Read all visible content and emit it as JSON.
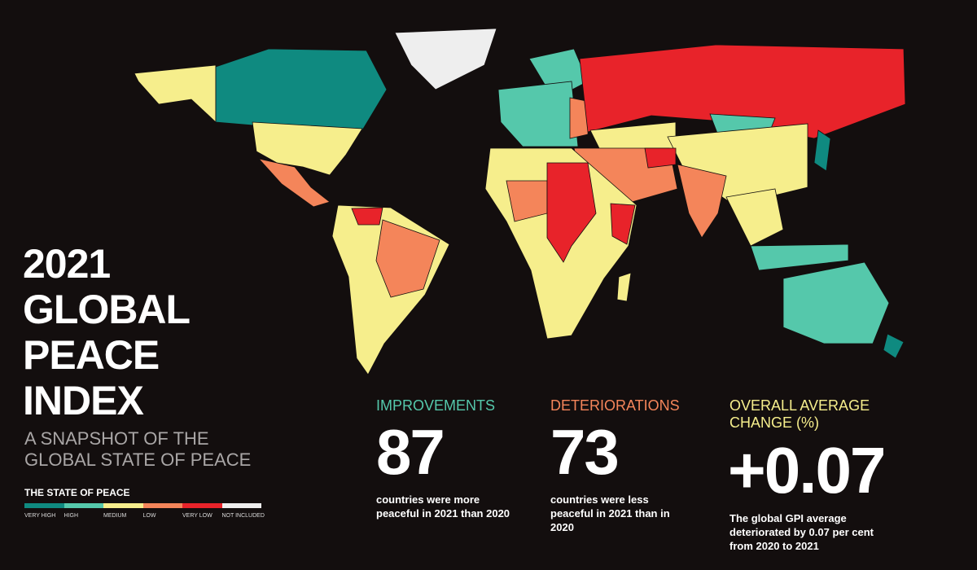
{
  "title_lines": [
    "2021",
    "GLOBAL",
    "PEACE",
    "INDEX"
  ],
  "subtitle_lines": [
    "A SNAPSHOT OF THE",
    "GLOBAL STATE OF PEACE"
  ],
  "background_color": "#130e0e",
  "legend": {
    "title": "THE STATE OF PEACE",
    "items": [
      {
        "key": "very_high",
        "label": "VERY HIGH",
        "color": "#0f8a80"
      },
      {
        "key": "high",
        "label": "HIGH",
        "color": "#55c8ab"
      },
      {
        "key": "medium",
        "label": "MEDIUM",
        "color": "#f6ee8c"
      },
      {
        "key": "low",
        "label": "LOW",
        "color": "#f4855a"
      },
      {
        "key": "very_low",
        "label": "VERY LOW",
        "color": "#e8232a"
      },
      {
        "key": "not_included",
        "label": "NOT INCLUDED",
        "color": "#eeeeee"
      }
    ]
  },
  "stats": [
    {
      "heading": "IMPROVEMENTS",
      "color": "#55c8ab",
      "value": "87",
      "description": "countries were more peaceful in 2021 than 2020"
    },
    {
      "heading": "DETERIORATIONS",
      "color": "#f4855a",
      "value": "73",
      "description": "countries were less peaceful in 2021 than in 2020"
    },
    {
      "heading": "OVERALL AVERAGE CHANGE (%)",
      "color": "#f6ee8c",
      "value": "+0.07",
      "description": "The global GPI average deteriorated by 0.07 per cent from 2020 to 2021"
    }
  ]
}
